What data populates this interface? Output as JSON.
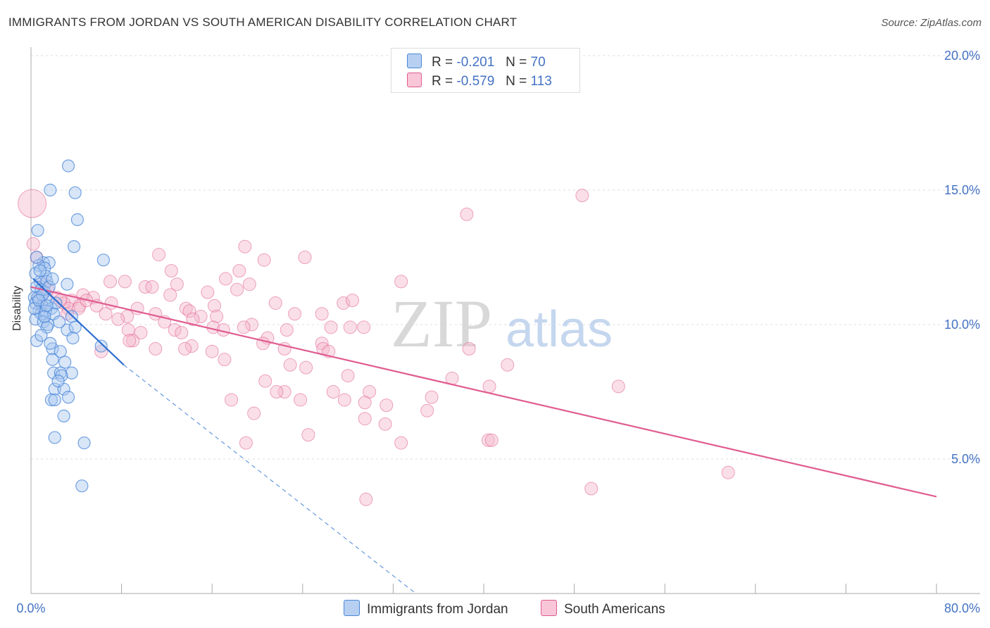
{
  "title": "IMMIGRANTS FROM JORDAN VS SOUTH AMERICAN DISABILITY CORRELATION CHART",
  "source": "Source: ZipAtlas.com",
  "watermark": {
    "zip": "ZIP",
    "atlas": "atlas"
  },
  "legend": {
    "r_label": "R =",
    "n_label": "N =",
    "series1": {
      "r": "-0.201",
      "n": "70"
    },
    "series2": {
      "r": "-0.579",
      "n": "113"
    }
  },
  "chart_data": {
    "type": "scatter",
    "title": "IMMIGRANTS FROM JORDAN VS SOUTH AMERICAN DISABILITY CORRELATION CHART",
    "xlabel": "",
    "ylabel": "Disability",
    "xlim": [
      0,
      80
    ],
    "ylim": [
      0,
      20
    ],
    "x_tick_labels": [
      "0.0%",
      "80.0%"
    ],
    "y_ticks": [
      5,
      10,
      15,
      20
    ],
    "y_tick_labels": [
      "5.0%",
      "10.0%",
      "15.0%",
      "20.0%"
    ],
    "grid": true,
    "legend_position": "top-center",
    "colors": {
      "jordan": "#4a86d8",
      "jordan_fill": "#a9c8f0",
      "south": "#e05c90",
      "south_fill": "#f5b8cd",
      "axis_text": "#4472c4"
    },
    "series": [
      {
        "name": "Immigrants from Jordan",
        "trend": {
          "x0": 0.2,
          "y0": 11.7,
          "x1": 8.2,
          "y1": 8.5,
          "dash_x1": 34,
          "dash_y1": 0
        },
        "points": [
          [
            3.3,
            15.9
          ],
          [
            1.7,
            15.0
          ],
          [
            3.9,
            14.9
          ],
          [
            4.1,
            13.9
          ],
          [
            0.6,
            13.5
          ],
          [
            3.8,
            12.9
          ],
          [
            6.4,
            12.4
          ],
          [
            1.1,
            12.3
          ],
          [
            1.6,
            12.3
          ],
          [
            0.7,
            12.2
          ],
          [
            1.2,
            12.1
          ],
          [
            1.3,
            11.8
          ],
          [
            0.8,
            11.6
          ],
          [
            1.4,
            11.6
          ],
          [
            3.2,
            11.5
          ],
          [
            0.5,
            11.4
          ],
          [
            0.9,
            11.3
          ],
          [
            1.2,
            11.2
          ],
          [
            0.3,
            11.0
          ],
          [
            1.5,
            10.9
          ],
          [
            0.4,
            10.8
          ],
          [
            1.0,
            10.7
          ],
          [
            1.8,
            10.6
          ],
          [
            0.7,
            10.5
          ],
          [
            0.9,
            10.4
          ],
          [
            1.3,
            10.5
          ],
          [
            2.0,
            10.4
          ],
          [
            3.6,
            10.3
          ],
          [
            0.4,
            10.2
          ],
          [
            1.1,
            10.1
          ],
          [
            1.5,
            10.0
          ],
          [
            1.4,
            9.9
          ],
          [
            3.2,
            9.8
          ],
          [
            3.7,
            9.5
          ],
          [
            0.5,
            9.4
          ],
          [
            6.2,
            9.2
          ],
          [
            1.9,
            9.1
          ],
          [
            2.6,
            9.0
          ],
          [
            1.9,
            8.7
          ],
          [
            2.0,
            8.2
          ],
          [
            2.6,
            8.2
          ],
          [
            3.6,
            8.2
          ],
          [
            2.7,
            8.1
          ],
          [
            2.1,
            7.6
          ],
          [
            2.9,
            7.6
          ],
          [
            1.8,
            7.2
          ],
          [
            2.1,
            7.2
          ],
          [
            3.3,
            7.3
          ],
          [
            2.9,
            6.6
          ],
          [
            2.1,
            5.8
          ],
          [
            4.7,
            5.6
          ],
          [
            4.5,
            4.0
          ],
          [
            0.4,
            11.9
          ],
          [
            0.8,
            12.0
          ],
          [
            1.6,
            11.4
          ],
          [
            0.6,
            11.0
          ],
          [
            1.2,
            10.3
          ],
          [
            2.2,
            10.8
          ],
          [
            0.9,
            9.6
          ],
          [
            1.7,
            9.3
          ],
          [
            2.4,
            7.9
          ],
          [
            3.0,
            8.6
          ],
          [
            0.3,
            10.6
          ],
          [
            1.0,
            11.1
          ],
          [
            0.5,
            12.5
          ],
          [
            1.9,
            11.7
          ],
          [
            2.5,
            10.1
          ],
          [
            0.7,
            10.9
          ],
          [
            1.4,
            10.7
          ],
          [
            3.9,
            9.9
          ]
        ]
      },
      {
        "name": "South Americans",
        "trend": {
          "x0": 0,
          "y0": 11.4,
          "x1": 80,
          "y1": 3.6
        },
        "points": [
          [
            0.1,
            14.5
          ],
          [
            38.5,
            14.1
          ],
          [
            48.7,
            14.8
          ],
          [
            0.2,
            13.0
          ],
          [
            18.9,
            12.9
          ],
          [
            11.3,
            12.6
          ],
          [
            24.2,
            12.5
          ],
          [
            20.6,
            12.4
          ],
          [
            0.5,
            12.5
          ],
          [
            12.4,
            12.0
          ],
          [
            18.4,
            12.0
          ],
          [
            17.2,
            11.7
          ],
          [
            7.0,
            11.6
          ],
          [
            8.3,
            11.6
          ],
          [
            12.9,
            11.5
          ],
          [
            10.1,
            11.4
          ],
          [
            10.7,
            11.4
          ],
          [
            19.3,
            11.5
          ],
          [
            32.7,
            11.6
          ],
          [
            18.2,
            11.3
          ],
          [
            15.6,
            11.2
          ],
          [
            12.3,
            11.1
          ],
          [
            1.5,
            11.3
          ],
          [
            4.6,
            11.1
          ],
          [
            5.5,
            11.0
          ],
          [
            0.8,
            11.0
          ],
          [
            2.3,
            11.0
          ],
          [
            3.6,
            10.9
          ],
          [
            7.1,
            10.8
          ],
          [
            2.9,
            10.8
          ],
          [
            16.2,
            10.7
          ],
          [
            21.6,
            10.8
          ],
          [
            27.6,
            10.8
          ],
          [
            28.4,
            10.9
          ],
          [
            4.3,
            10.7
          ],
          [
            5.8,
            10.7
          ],
          [
            3.3,
            10.6
          ],
          [
            4.2,
            10.6
          ],
          [
            13.7,
            10.6
          ],
          [
            14.0,
            10.5
          ],
          [
            11.0,
            10.4
          ],
          [
            8.5,
            10.3
          ],
          [
            15.0,
            10.3
          ],
          [
            16.4,
            10.3
          ],
          [
            23.3,
            10.4
          ],
          [
            25.7,
            10.4
          ],
          [
            14.3,
            10.2
          ],
          [
            7.7,
            10.2
          ],
          [
            11.8,
            10.1
          ],
          [
            19.5,
            10.0
          ],
          [
            18.8,
            9.9
          ],
          [
            16.1,
            9.9
          ],
          [
            26.5,
            9.9
          ],
          [
            28.2,
            9.9
          ],
          [
            29.4,
            9.9
          ],
          [
            12.7,
            9.8
          ],
          [
            8.6,
            9.8
          ],
          [
            17.0,
            9.8
          ],
          [
            22.6,
            9.8
          ],
          [
            9.7,
            9.7
          ],
          [
            13.3,
            9.7
          ],
          [
            20.9,
            9.5
          ],
          [
            9.0,
            9.4
          ],
          [
            8.7,
            9.4
          ],
          [
            20.5,
            9.3
          ],
          [
            14.2,
            9.2
          ],
          [
            25.7,
            9.3
          ],
          [
            13.6,
            9.1
          ],
          [
            16.0,
            9.0
          ],
          [
            22.4,
            9.1
          ],
          [
            25.8,
            9.1
          ],
          [
            26.3,
            9.0
          ],
          [
            6.2,
            9.0
          ],
          [
            11.0,
            9.1
          ],
          [
            38.7,
            9.1
          ],
          [
            17.1,
            8.7
          ],
          [
            22.9,
            8.5
          ],
          [
            24.3,
            8.4
          ],
          [
            42.1,
            8.5
          ],
          [
            28.0,
            8.1
          ],
          [
            20.7,
            7.9
          ],
          [
            37.2,
            8.0
          ],
          [
            40.5,
            7.7
          ],
          [
            51.9,
            7.7
          ],
          [
            22.4,
            7.5
          ],
          [
            21.7,
            7.5
          ],
          [
            26.7,
            7.5
          ],
          [
            29.9,
            7.5
          ],
          [
            23.8,
            7.2
          ],
          [
            27.7,
            7.2
          ],
          [
            35.4,
            7.3
          ],
          [
            17.7,
            7.2
          ],
          [
            29.5,
            7.1
          ],
          [
            31.4,
            7.0
          ],
          [
            19.7,
            6.7
          ],
          [
            35.0,
            6.8
          ],
          [
            29.5,
            6.5
          ],
          [
            31.3,
            6.3
          ],
          [
            24.5,
            5.9
          ],
          [
            19.0,
            5.6
          ],
          [
            32.7,
            5.6
          ],
          [
            40.4,
            5.7
          ],
          [
            40.7,
            5.7
          ],
          [
            61.6,
            4.5
          ],
          [
            49.5,
            3.9
          ],
          [
            29.6,
            3.5
          ],
          [
            1.2,
            11.5
          ],
          [
            2.6,
            10.9
          ],
          [
            4.9,
            10.9
          ],
          [
            6.6,
            10.4
          ],
          [
            9.4,
            10.6
          ],
          [
            0.9,
            10.7
          ],
          [
            3.2,
            10.4
          ]
        ]
      }
    ]
  }
}
